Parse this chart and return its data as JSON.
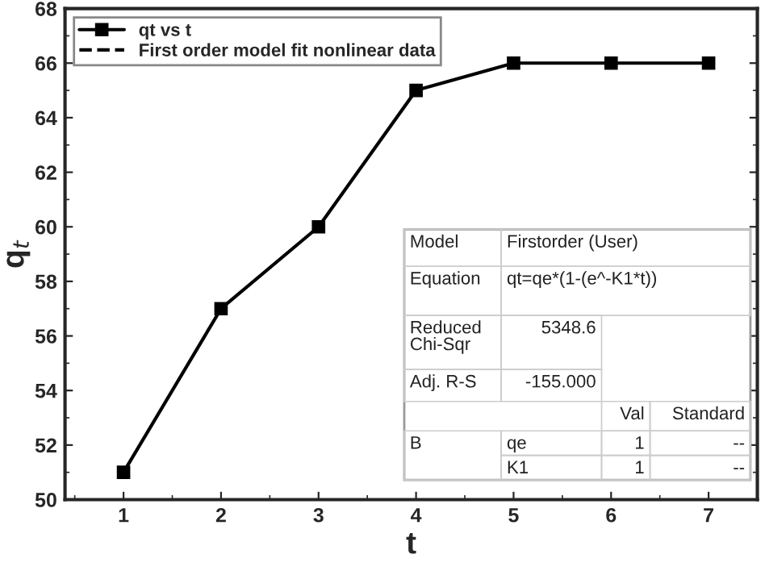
{
  "chart_data": {
    "type": "line",
    "xlabel": "t",
    "ylabel": "q$_{t}$",
    "x": [
      1,
      2,
      3,
      4,
      5,
      6,
      7
    ],
    "series": [
      {
        "name": "qt vs t",
        "color": "#000000",
        "values": [
          51,
          57,
          60,
          65,
          66,
          66,
          66
        ],
        "marker": "square",
        "line_style": "solid"
      },
      {
        "name": "First order model fit nonlinear data",
        "color": "#000000",
        "values": [
          null,
          null,
          null,
          null,
          null,
          null,
          null
        ],
        "marker": "none",
        "line_style": "dashed"
      }
    ],
    "xlim": [
      0.4,
      7.5
    ],
    "xticks": [
      1,
      2,
      3,
      4,
      5,
      6,
      7
    ],
    "ylim": [
      50,
      68
    ],
    "yticks": [
      50,
      52,
      54,
      56,
      58,
      60,
      62,
      64,
      66,
      68
    ],
    "legend": "top left",
    "grid": false,
    "annotations": [
      "Model",
      "Firstorder (User)",
      "Equation",
      "qt=qe*(1-(e^-K1*t))",
      "Reduced\nChi-Sqr",
      "5348.6",
      "Adj. R-S",
      "-155.000",
      "Val",
      "Standard",
      "B",
      "qe",
      "1",
      "--",
      "K1",
      "1",
      "--"
    ]
  }
}
